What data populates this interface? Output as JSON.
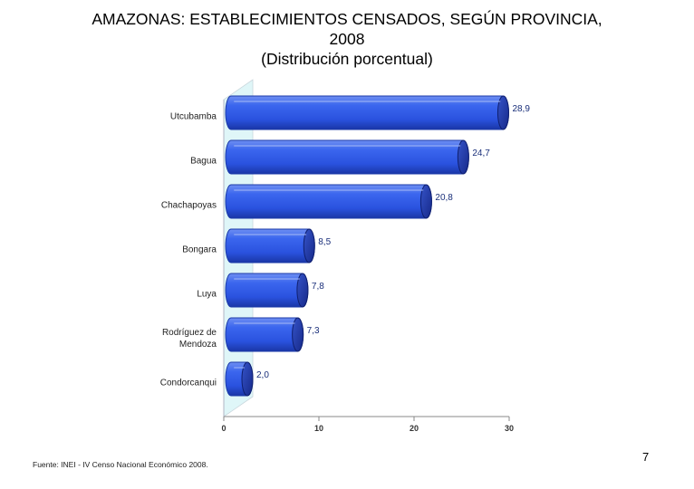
{
  "title": {
    "line1": "AMAZONAS: ESTABLECIMIENTOS CENSADOS, SEGÚN PROVINCIA,",
    "line2": "2008",
    "line3": "(Distribución porcentual)"
  },
  "chart_data": {
    "type": "bar",
    "orientation": "horizontal",
    "style": "3d-cylinder",
    "categories": [
      "Utcubamba",
      "Bagua",
      "Chachapoyas",
      "Bongara",
      "Luya",
      "Rodríguez de Mendoza",
      "Condorcanqui"
    ],
    "category_lines": [
      [
        "Utcubamba"
      ],
      [
        "Bagua"
      ],
      [
        "Chachapoyas"
      ],
      [
        "Bongara"
      ],
      [
        "Luya"
      ],
      [
        "Rodríguez de",
        "Mendoza"
      ],
      [
        "Condorcanqui"
      ]
    ],
    "values": [
      28.9,
      24.7,
      20.8,
      8.5,
      7.8,
      7.3,
      2.0
    ],
    "value_labels": [
      "28,9",
      "24,7",
      "20,8",
      "8,5",
      "7,8",
      "7,3",
      "2,0"
    ],
    "xlim": [
      0,
      30
    ],
    "xticks": [
      0,
      10,
      20,
      30
    ],
    "xtick_labels": [
      "0",
      "10",
      "20",
      "30"
    ],
    "grid": false,
    "legend": "none",
    "bar_color": "#2f5be8",
    "bar_dark": "#1b3aa8",
    "wall_color": "#dff6f8"
  },
  "footer": {
    "source": "Fuente: INEI - IV Censo Nacional Económico 2008.",
    "page_number": "7"
  }
}
